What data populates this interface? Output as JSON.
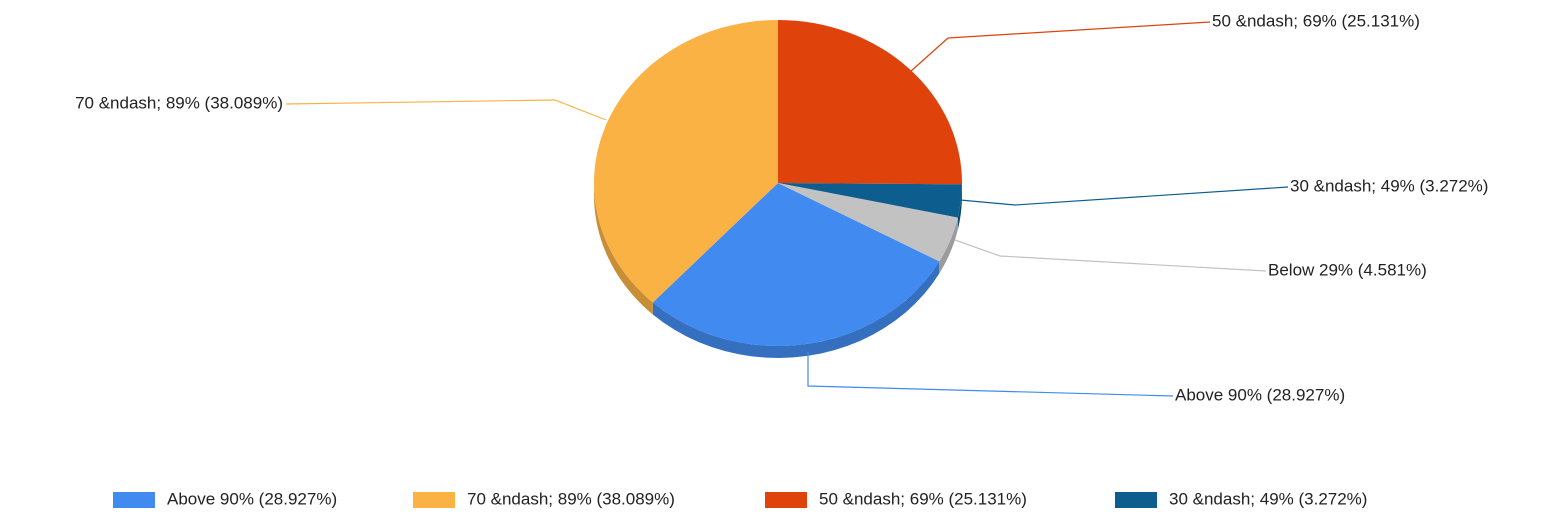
{
  "chart_data": {
    "type": "pie",
    "categories": [
      "Above 90% (28.927%)",
      "70 &ndash; 89% (38.089%)",
      "50 &ndash; 69% (25.131%)",
      "30 &ndash; 49% (3.272%)",
      "Below 29% (4.581%)"
    ],
    "values": [
      28.927,
      38.089,
      25.131,
      3.272,
      4.581
    ],
    "colors": [
      "#418bf0",
      "#f9b243",
      "#e0420b",
      "#0d5d8f",
      "#c2c2c2"
    ],
    "legend": "bottom"
  }
}
